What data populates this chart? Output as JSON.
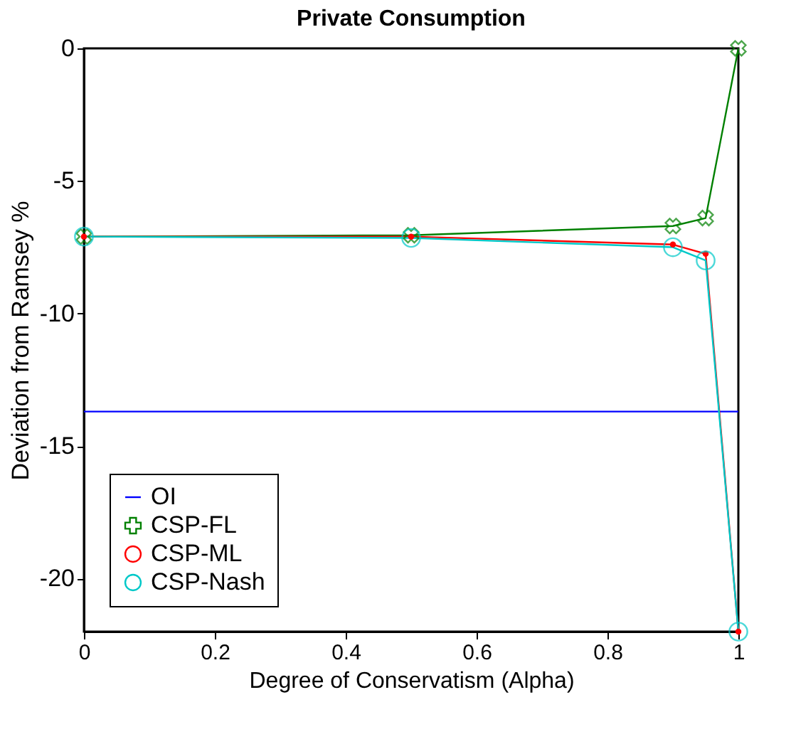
{
  "chart_data": {
    "type": "line",
    "title": "Private Consumption",
    "xlabel": "Degree of Conservatism (Alpha)",
    "ylabel": "Deviation from Ramsey %",
    "x": [
      0,
      0.5,
      0.9,
      0.95,
      1
    ],
    "xlim": [
      0,
      1
    ],
    "xticks": [
      0,
      0.2,
      0.4,
      0.6,
      0.8,
      1
    ],
    "ylim": [
      -22,
      0
    ],
    "yticks": [
      -20,
      -15,
      -10,
      -5,
      0
    ],
    "grid": false,
    "legend": "bottom left",
    "series": [
      {
        "name": "OI",
        "color": "#0000ff",
        "marker": "none",
        "values": [
          -13.7,
          -13.7,
          -13.7,
          -13.7,
          -13.7
        ]
      },
      {
        "name": "CSP-FL",
        "color": "#008000",
        "marker": "cross",
        "values": [
          -7.1,
          -7.05,
          -6.7,
          -6.4,
          0
        ]
      },
      {
        "name": "CSP-ML",
        "color": "#ff0000",
        "marker": "dot",
        "values": [
          -7.1,
          -7.1,
          -7.4,
          -7.75,
          -22
        ]
      },
      {
        "name": "CSP-Nash",
        "color": "#00c8c8",
        "marker": "circle",
        "values": [
          -7.1,
          -7.15,
          -7.5,
          -8.0,
          -22
        ]
      }
    ]
  }
}
